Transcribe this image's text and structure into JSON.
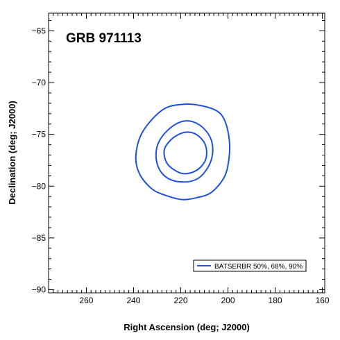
{
  "chart_data": {
    "type": "line",
    "title": "GRB 971113",
    "xlabel": "Right Ascension (deg; J2000)",
    "ylabel": "Declination (deg; J2000)",
    "xlim": [
      276,
      159
    ],
    "ylim": [
      -90.3,
      -63.3
    ],
    "x_reversed": true,
    "x_ticks": [
      260,
      240,
      220,
      200,
      180,
      160
    ],
    "y_ticks": [
      -65,
      -70,
      -75,
      -80,
      -85,
      -90
    ],
    "grid": false,
    "legend_placement": "bottom-right",
    "legend_label": "BATSERBR 50%, 68%, 90%",
    "series_color": "#1f4fe0",
    "series": [
      {
        "x": [
          219,
          227.5,
          236,
          239,
          237.5,
          232,
          225,
          219,
          213,
          207,
          201.5,
          199.5,
          199.5,
          201.5,
          205,
          212,
          219
        ],
        "y": [
          -72.1,
          -72.6,
          -74.7,
          -77.0,
          -78.8,
          -80.3,
          -81.0,
          -81.3,
          -81.1,
          -80.6,
          -79.1,
          -77.2,
          -75.4,
          -73.6,
          -72.7,
          -72.2,
          -72.1
        ]
      },
      {
        "x": [
          218,
          224,
          229,
          230.5,
          229,
          225,
          219,
          213,
          208.5,
          206.5,
          207.5,
          212,
          218
        ],
        "y": [
          -73.7,
          -74.3,
          -75.6,
          -77.0,
          -78.4,
          -79.3,
          -79.6,
          -79.3,
          -78.2,
          -76.8,
          -75.3,
          -74.1,
          -73.7
        ]
      },
      {
        "x": [
          218,
          223,
          226.5,
          227,
          225.5,
          221.5,
          218,
          213.5,
          210,
          209,
          210,
          213.5,
          218
        ],
        "y": [
          -74.8,
          -75.3,
          -76.2,
          -77.0,
          -77.9,
          -78.6,
          -78.8,
          -78.5,
          -77.7,
          -76.8,
          -75.8,
          -75.0,
          -74.8
        ]
      }
    ]
  }
}
